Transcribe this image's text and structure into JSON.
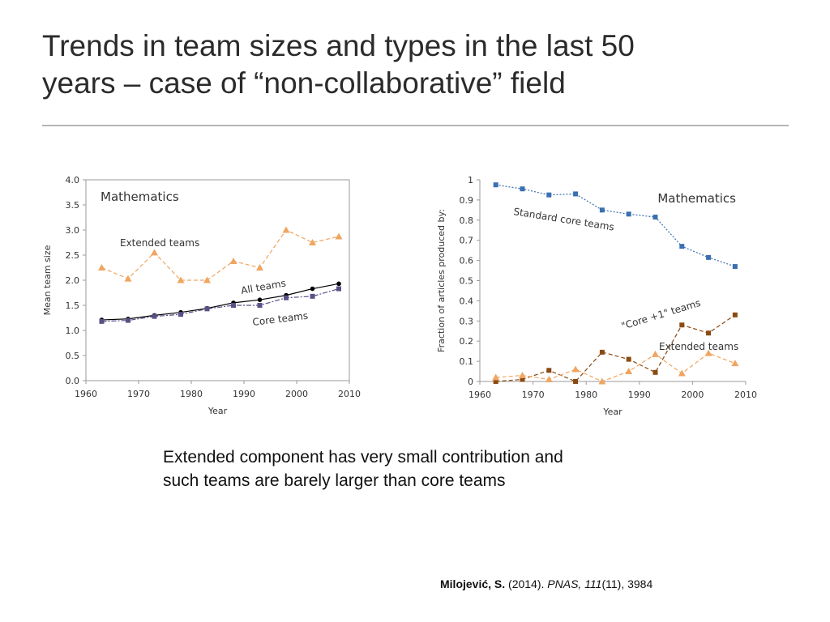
{
  "title": {
    "line1": "Trends in team sizes and types in the last 50",
    "line2": "years – case of “non-collaborative” field"
  },
  "caption": {
    "line1": "Extended component has very small contribution and",
    "line2": "such teams are barely larger than core teams"
  },
  "citation": {
    "author": "Milojević, S.",
    "year": "(2014).",
    "journal": "PNAS,",
    "volume": "111",
    "issue": "(11), 3984"
  },
  "colors": {
    "extended": "#f0a560",
    "all": "#000000",
    "core": "#5b4f86",
    "standard_core": "#3a6fb0",
    "core_plus_one": "#8a4a12"
  },
  "chart_data": [
    {
      "type": "line",
      "title": "Mathematics",
      "xlabel": "Year",
      "ylabel": "Mean team size",
      "xlim": [
        1960,
        2010
      ],
      "ylim": [
        0,
        4
      ],
      "xticks": [
        1960,
        1970,
        1980,
        1990,
        2000,
        2010
      ],
      "yticks": [
        "0.0",
        "0.5",
        "1.0",
        "1.5",
        "2.0",
        "2.5",
        "3.0",
        "3.5",
        "4.0"
      ],
      "x": [
        1963,
        1968,
        1973,
        1978,
        1983,
        1988,
        1993,
        1998,
        2003,
        2008
      ],
      "series": [
        {
          "name": "Extended teams",
          "label": "Extended teams",
          "marker": "triangle",
          "style": "dashed",
          "color": "#f0a560",
          "values": [
            2.25,
            2.03,
            2.55,
            2.0,
            2.0,
            2.38,
            2.25,
            3.0,
            2.75,
            2.87
          ]
        },
        {
          "name": "All teams",
          "label": "All teams",
          "marker": "circle",
          "style": "solid",
          "color": "#000000",
          "values": [
            1.21,
            1.23,
            1.3,
            1.36,
            1.44,
            1.55,
            1.61,
            1.7,
            1.83,
            1.93
          ]
        },
        {
          "name": "Core teams",
          "label": "Core teams",
          "marker": "square",
          "style": "dashdot",
          "color": "#5b4f86",
          "values": [
            1.18,
            1.2,
            1.28,
            1.32,
            1.43,
            1.5,
            1.5,
            1.65,
            1.68,
            1.83
          ]
        }
      ]
    },
    {
      "type": "line",
      "title": "Mathematics",
      "xlabel": "Year",
      "ylabel": "Fraction of articles produced by:",
      "xlim": [
        1960,
        2010
      ],
      "ylim": [
        0,
        1
      ],
      "xticks": [
        1960,
        1970,
        1980,
        1990,
        2000,
        2010
      ],
      "yticks": [
        "0",
        "0.1",
        "0.2",
        "0.3",
        "0.4",
        "0.5",
        "0.6",
        "0.7",
        "0.8",
        "0.9",
        "1"
      ],
      "x": [
        1963,
        1968,
        1973,
        1978,
        1983,
        1988,
        1993,
        1998,
        2003,
        2008
      ],
      "series": [
        {
          "name": "Standard core teams",
          "label": "Standard core teams",
          "marker": "square",
          "style": "dotted",
          "color": "#3a6fb0",
          "values": [
            0.975,
            0.955,
            0.925,
            0.93,
            0.85,
            0.83,
            0.815,
            0.67,
            0.615,
            0.57
          ]
        },
        {
          "name": "\"Core +1\" teams",
          "label": "\"Core +1\" teams",
          "marker": "square",
          "style": "dashed",
          "color": "#8a4a12",
          "values": [
            0.0,
            0.01,
            0.055,
            0.0,
            0.145,
            0.11,
            0.045,
            0.28,
            0.24,
            0.33
          ]
        },
        {
          "name": "Extended teams",
          "label": "Extended teams",
          "marker": "triangle",
          "style": "dashed",
          "color": "#f0a560",
          "values": [
            0.02,
            0.03,
            0.01,
            0.06,
            0.0,
            0.05,
            0.135,
            0.04,
            0.14,
            0.09
          ]
        }
      ]
    }
  ]
}
